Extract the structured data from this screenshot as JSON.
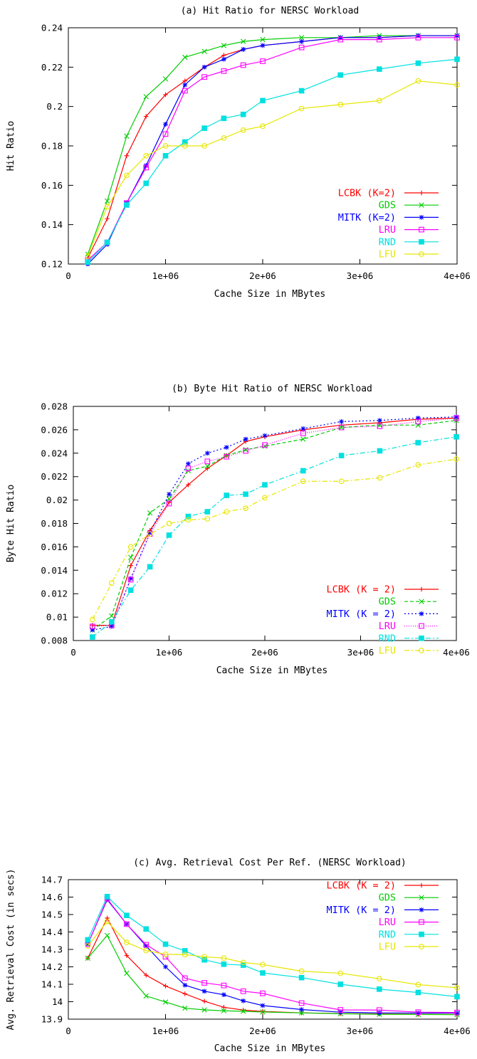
{
  "chart_data": [
    {
      "type": "line",
      "title": "(a) Hit Ratio for NERSC  Workload",
      "xlabel": "Cache Size in MBytes",
      "ylabel": "Hit Ratio",
      "xlim": [
        0,
        4000000
      ],
      "ylim": [
        0.12,
        0.24
      ],
      "xticks": [
        0,
        1000000,
        2000000,
        3000000,
        4000000
      ],
      "xtick_labels": [
        "0",
        "1e+06",
        "2e+06",
        "3e+06",
        "4e+06"
      ],
      "yticks": [
        0.12,
        0.14,
        0.16,
        0.18,
        0.2,
        0.22,
        0.24
      ],
      "ytick_labels": [
        "0.12",
        "0.14",
        "0.16",
        "0.18",
        "0.2",
        "0.22",
        "0.24"
      ],
      "legend_position": "bottom-right",
      "x": [
        200000,
        400000,
        600000,
        800000,
        1000000,
        1200000,
        1400000,
        1600000,
        1800000,
        2000000,
        2400000,
        2800000,
        3200000,
        3600000,
        4000000
      ],
      "series": [
        {
          "name": "LCBK (K=2)",
          "color": "#ff0000",
          "marker": "plus",
          "dash": "solid",
          "values": [
            0.123,
            0.143,
            0.175,
            0.195,
            0.206,
            0.213,
            0.22,
            0.226,
            0.229,
            0.231,
            0.233,
            0.235,
            0.235,
            0.236,
            0.236
          ]
        },
        {
          "name": "GDS",
          "color": "#00cc00",
          "marker": "x",
          "dash": "solid",
          "values": [
            0.125,
            0.152,
            0.185,
            0.205,
            0.214,
            0.225,
            0.228,
            0.231,
            0.233,
            0.234,
            0.235,
            0.235,
            0.236,
            0.236,
            0.236
          ]
        },
        {
          "name": "MITK (K=2)",
          "color": "#0000ff",
          "marker": "star",
          "dash": "solid",
          "values": [
            0.12,
            0.13,
            0.151,
            0.17,
            0.191,
            0.211,
            0.22,
            0.224,
            0.229,
            0.231,
            0.233,
            0.235,
            0.235,
            0.236,
            0.236
          ]
        },
        {
          "name": "LRU",
          "color": "#ff00ff",
          "marker": "square",
          "dash": "solid",
          "values": [
            0.122,
            0.131,
            0.151,
            0.169,
            0.186,
            0.208,
            0.215,
            0.218,
            0.221,
            0.223,
            0.23,
            0.234,
            0.234,
            0.235,
            0.235
          ]
        },
        {
          "name": "RND",
          "color": "#00e0e0",
          "marker": "fsquare",
          "dash": "solid",
          "values": [
            0.121,
            0.131,
            0.15,
            0.161,
            0.175,
            0.182,
            0.189,
            0.194,
            0.196,
            0.203,
            0.208,
            0.216,
            0.219,
            0.222,
            0.224
          ]
        },
        {
          "name": "LFU",
          "color": "#e6e600",
          "marker": "circle",
          "dash": "solid",
          "values": [
            0.124,
            0.149,
            0.165,
            0.175,
            0.18,
            0.18,
            0.18,
            0.184,
            0.188,
            0.19,
            0.199,
            0.201,
            0.203,
            0.213,
            0.211
          ]
        }
      ]
    },
    {
      "type": "line",
      "title": "(b) Byte Hit Ratio of NERSC  Workload",
      "xlabel": "Cache Size in MBytes",
      "ylabel": "Byte Hit Ratio",
      "xlim": [
        0,
        4000000
      ],
      "ylim": [
        0.008,
        0.028
      ],
      "xticks": [
        0,
        1000000,
        2000000,
        3000000,
        4000000
      ],
      "xtick_labels": [
        "0",
        "1e+06",
        "2e+06",
        "3e+06",
        "4e+06"
      ],
      "yticks": [
        0.008,
        0.01,
        0.012,
        0.014,
        0.016,
        0.018,
        0.02,
        0.022,
        0.024,
        0.026,
        0.028
      ],
      "ytick_labels": [
        "0.008",
        "0.01",
        "0.012",
        "0.014",
        "0.016",
        "0.018",
        "0.02",
        "0.022",
        "0.024",
        "0.026",
        "0.028"
      ],
      "legend_position": "bottom-right",
      "x": [
        200000,
        400000,
        600000,
        800000,
        1000000,
        1200000,
        1400000,
        1600000,
        1800000,
        2000000,
        2400000,
        2800000,
        3200000,
        3600000,
        4000000
      ],
      "series": [
        {
          "name": "LCBK (K = 2)",
          "color": "#ff0000",
          "marker": "plus",
          "dash": "solid",
          "values": [
            0.0093,
            0.0093,
            0.0144,
            0.0174,
            0.0198,
            0.0213,
            0.0227,
            0.0238,
            0.025,
            0.0254,
            0.026,
            0.0264,
            0.0266,
            0.0269,
            0.027
          ]
        },
        {
          "name": "GDS",
          "color": "#00cc00",
          "marker": "x",
          "dash": "dash",
          "values": [
            0.0089,
            0.0101,
            0.0151,
            0.0189,
            0.0201,
            0.0225,
            0.0229,
            0.0238,
            0.0243,
            0.0246,
            0.0252,
            0.0262,
            0.0264,
            0.0264,
            0.0268
          ]
        },
        {
          "name": "MITK (K = 2)",
          "color": "#0000ff",
          "marker": "star",
          "dash": "dot",
          "values": [
            0.0089,
            0.0092,
            0.0133,
            0.0172,
            0.0205,
            0.0231,
            0.024,
            0.0245,
            0.0252,
            0.0255,
            0.0261,
            0.0267,
            0.0268,
            0.027,
            0.0271
          ]
        },
        {
          "name": "LRU",
          "color": "#ff00ff",
          "marker": "square",
          "dash": "fine",
          "values": [
            0.0092,
            0.0093,
            0.0132,
            0.0171,
            0.0197,
            0.0227,
            0.0233,
            0.0237,
            0.0242,
            0.0247,
            0.0257,
            0.0262,
            0.0263,
            0.0267,
            0.027
          ]
        },
        {
          "name": "RND",
          "color": "#00e0e0",
          "marker": "fsquare",
          "dash": "dashdot",
          "values": [
            0.0083,
            0.0096,
            0.0123,
            0.0143,
            0.017,
            0.0186,
            0.019,
            0.0204,
            0.0205,
            0.0213,
            0.0225,
            0.0238,
            0.0242,
            0.0249,
            0.0254
          ]
        },
        {
          "name": "LFU",
          "color": "#e6e600",
          "marker": "circle",
          "dash": "dashdot",
          "values": [
            0.0098,
            0.0129,
            0.016,
            0.0171,
            0.018,
            0.0183,
            0.0184,
            0.019,
            0.0193,
            0.0202,
            0.0216,
            0.0216,
            0.0219,
            0.023,
            0.0235
          ]
        }
      ]
    },
    {
      "type": "line",
      "title": "(c) Avg. Retrieval Cost Per Ref. (NERSC Workload)",
      "xlabel": "Cache Size in MBytes",
      "ylabel": "Avg. Retrieval Cost (in secs)",
      "xlim": [
        0,
        4000000
      ],
      "ylim": [
        13.9,
        14.7
      ],
      "xticks": [
        0,
        1000000,
        2000000,
        3000000,
        4000000
      ],
      "xtick_labels": [
        "0",
        "1e+06",
        "2e+06",
        "3e+06",
        "4e+06"
      ],
      "yticks": [
        13.9,
        14,
        14.1,
        14.2,
        14.3,
        14.4,
        14.5,
        14.6,
        14.7
      ],
      "ytick_labels": [
        "13.9",
        "14",
        "14.1",
        "14.2",
        "14.3",
        "14.4",
        "14.5",
        "14.6",
        "14.7"
      ],
      "legend_position": "top-right",
      "x": [
        200000,
        400000,
        600000,
        800000,
        1000000,
        1200000,
        1400000,
        1600000,
        1800000,
        2000000,
        2400000,
        2800000,
        3200000,
        3600000,
        4000000
      ],
      "series": [
        {
          "name": "LCBK (K = 2)",
          "color": "#ff0000",
          "marker": "plus",
          "dash": "solid",
          "values": [
            14.25,
            14.48,
            14.265,
            14.152,
            14.09,
            14.045,
            14.003,
            13.968,
            13.952,
            13.944,
            13.936,
            13.932,
            13.93,
            13.928,
            13.927
          ]
        },
        {
          "name": "GDS",
          "color": "#00cc00",
          "marker": "x",
          "dash": "solid",
          "values": [
            14.25,
            14.38,
            14.163,
            14.033,
            13.998,
            13.963,
            13.953,
            13.948,
            13.945,
            13.941,
            13.936,
            13.931,
            13.928,
            13.927,
            13.926
          ]
        },
        {
          "name": "MITK (K = 2)",
          "color": "#0000ff",
          "marker": "star",
          "dash": "solid",
          "values": [
            14.33,
            14.585,
            14.445,
            14.32,
            14.2,
            14.095,
            14.06,
            14.04,
            14.005,
            13.978,
            13.955,
            13.94,
            13.936,
            13.935,
            13.935
          ]
        },
        {
          "name": "LRU",
          "color": "#ff00ff",
          "marker": "square",
          "dash": "solid",
          "values": [
            14.33,
            14.59,
            14.445,
            14.327,
            14.258,
            14.135,
            14.108,
            14.093,
            14.06,
            14.048,
            13.992,
            13.953,
            13.952,
            13.94,
            13.938
          ]
        },
        {
          "name": "RND",
          "color": "#00e0e0",
          "marker": "fsquare",
          "dash": "solid",
          "values": [
            14.355,
            14.603,
            14.495,
            14.417,
            14.33,
            14.292,
            14.24,
            14.215,
            14.21,
            14.165,
            14.138,
            14.1,
            14.072,
            14.053,
            14.029
          ]
        },
        {
          "name": "LFU",
          "color": "#e6e600",
          "marker": "circle",
          "dash": "solid",
          "values": [
            14.32,
            14.46,
            14.34,
            14.293,
            14.272,
            14.27,
            14.258,
            14.25,
            14.225,
            14.213,
            14.175,
            14.163,
            14.132,
            14.098,
            14.08
          ]
        }
      ]
    }
  ]
}
